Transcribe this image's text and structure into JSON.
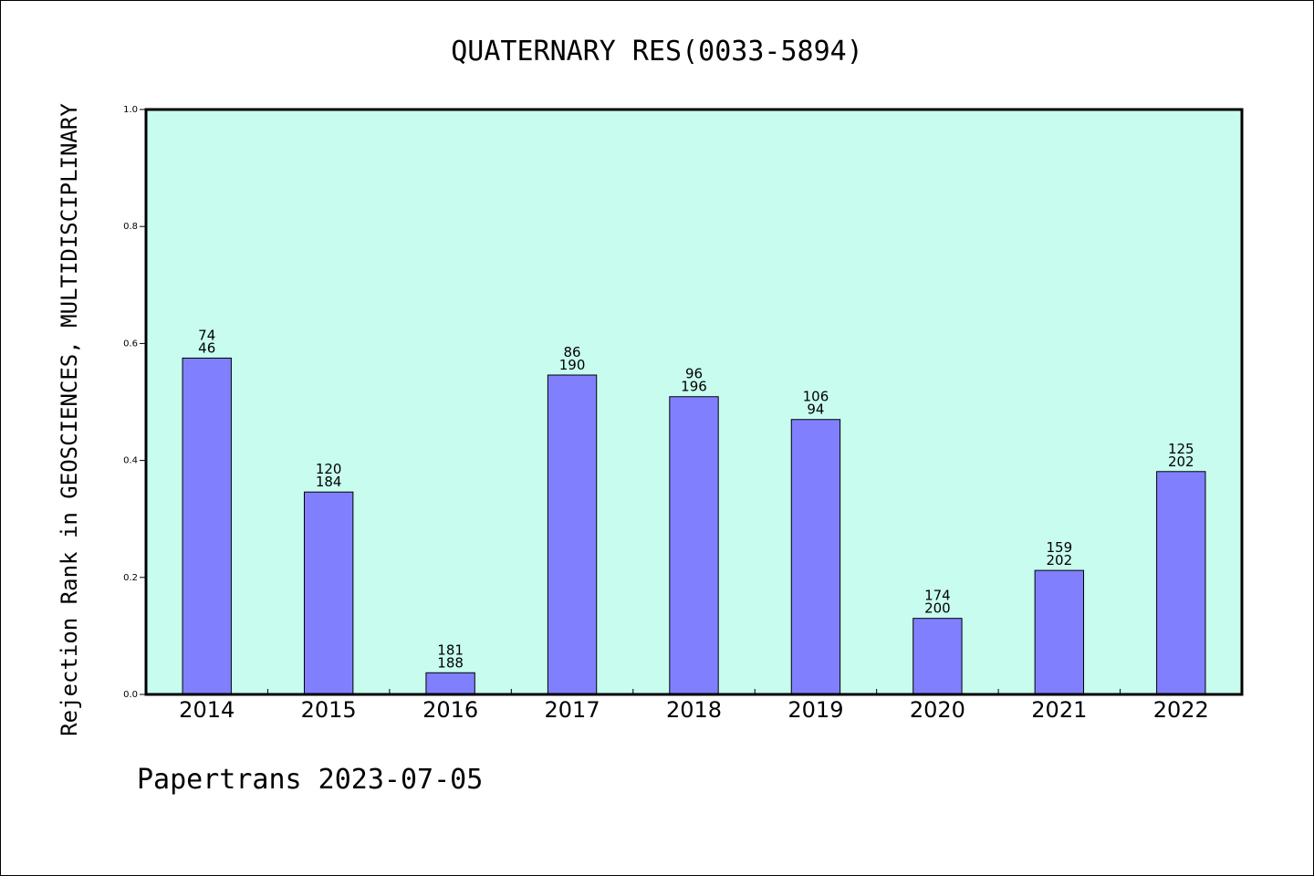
{
  "chart_data": {
    "type": "bar",
    "title": "QUATERNARY RES(0033-5894)",
    "ylabel": "Rejection Rank in GEOSCIENCES, MULTIDISCIPLINARY",
    "xlabel": "",
    "ylim": [
      0,
      1.0
    ],
    "yticks": [
      "0.0",
      "0.2",
      "0.4",
      "0.6",
      "0.8",
      "1.0"
    ],
    "categories": [
      "2014",
      "2015",
      "2016",
      "2017",
      "2018",
      "2019",
      "2020",
      "2021",
      "2022"
    ],
    "values": [
      0.575,
      0.346,
      0.037,
      0.546,
      0.509,
      0.47,
      0.13,
      0.212,
      0.381
    ],
    "labels_top": [
      "74",
      "120",
      "181",
      "86",
      "96",
      "106",
      "174",
      "159",
      "125"
    ],
    "labels_bottom": [
      "46",
      "184",
      "188",
      "190",
      "196",
      "94",
      "200",
      "202",
      "202"
    ],
    "colors": {
      "plot_bg": "#c8fcee",
      "bar": "#8080ff",
      "bar_edge": "#000000"
    },
    "grid": false
  },
  "footer": "Papertrans 2023-07-05"
}
